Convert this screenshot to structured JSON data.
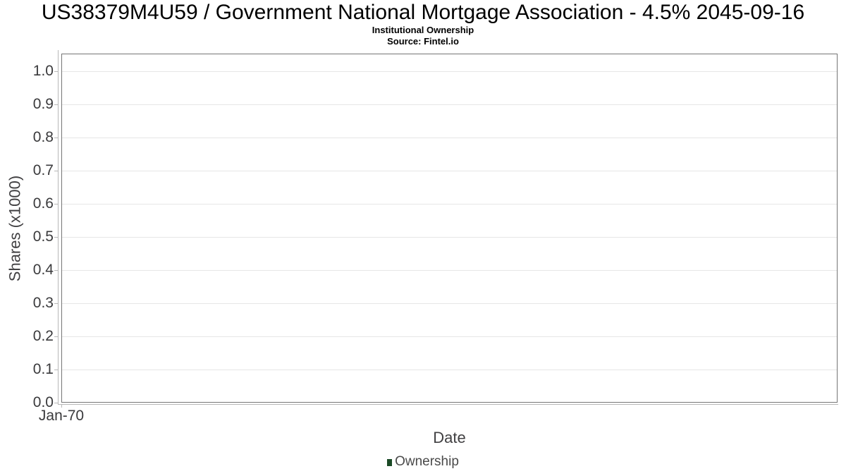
{
  "chart_data": {
    "type": "line",
    "title": "US38379M4U59 / Government National Mortgage Association - 4.5% 2045-09-16",
    "subtitle": "Institutional Ownership",
    "source": "Source: Fintel.io",
    "xlabel": "Date",
    "ylabel": "Shares (x1000)",
    "x_tick_labels": [
      "Jan-70"
    ],
    "y_tick_labels": [
      "0.0",
      "0.1",
      "0.2",
      "0.3",
      "0.4",
      "0.5",
      "0.6",
      "0.7",
      "0.8",
      "0.9",
      "1.0"
    ],
    "ylim": [
      0,
      1.053
    ],
    "grid": true,
    "legend_position": "bottom-center",
    "series": [
      {
        "name": "Ownership",
        "color": "#1b4a26",
        "x": [],
        "values": []
      }
    ],
    "colors": {
      "title_text": "#000000",
      "tick_text": "#3a3a3c",
      "axis_label_text": "#414042",
      "legend_text": "#4a4a4a",
      "plot_border": "#757575",
      "axis_line": "#b8b8b8",
      "gridline": "#e6e6e6",
      "series_ownership": "#1b4a26",
      "background": "#ffffff"
    }
  }
}
